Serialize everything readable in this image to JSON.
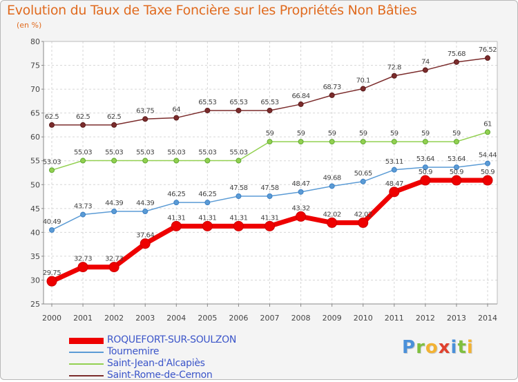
{
  "chart_data": {
    "type": "line",
    "title": "Evolution du Taux de Taxe Foncière sur les Propriétés Non Bâties",
    "ylabel": "(en %)",
    "xlabel": "",
    "ylim": [
      25,
      80
    ],
    "yticks": [
      "25",
      "30",
      "35",
      "40",
      "45",
      "50",
      "55",
      "60",
      "65",
      "70",
      "75",
      "80"
    ],
    "x": [
      "2000",
      "2001",
      "2002",
      "2003",
      "2004",
      "2005",
      "2006",
      "2007",
      "2008",
      "2009",
      "2010",
      "2011",
      "2012",
      "2013",
      "2014"
    ],
    "grid": true,
    "legend_position": "bottom-left",
    "series": [
      {
        "name": "ROQUEFORT-SUR-SOULZON",
        "color": "#ee0000",
        "values": [
          29.75,
          32.73,
          32.73,
          37.64,
          41.31,
          41.31,
          41.31,
          41.31,
          43.32,
          42.02,
          42.02,
          48.47,
          50.9,
          50.9,
          50.9
        ],
        "labels": [
          "29.75",
          "32.73",
          "32.73",
          "37.64",
          "41.31",
          "41.31",
          "41.31",
          "41.31",
          "43.32",
          "42.02",
          "42.02",
          "48.47",
          "50.9",
          "50.9",
          "50.9"
        ]
      },
      {
        "name": "Tournemire",
        "color": "#5b9bd5",
        "values": [
          40.49,
          43.73,
          44.39,
          44.39,
          46.25,
          46.25,
          47.58,
          47.58,
          48.47,
          49.68,
          50.65,
          53.11,
          53.64,
          53.64,
          54.44
        ],
        "labels": [
          "40.49",
          "43.73",
          "44.39",
          "44.39",
          "46.25",
          "46.25",
          "47.58",
          "47.58",
          "48.47",
          "49.68",
          "50.65",
          "53.11",
          "53.64",
          "53.64",
          "54.44"
        ]
      },
      {
        "name": "Saint-Jean-d'Alcapiès",
        "color": "#92d050",
        "values": [
          53.03,
          55.03,
          55.03,
          55.03,
          55.03,
          55.03,
          55.03,
          59,
          59,
          59,
          59,
          59,
          59,
          59,
          61
        ],
        "labels": [
          "53.03",
          "55.03",
          "55.03",
          "55.03",
          "55.03",
          "55.03",
          "55.03",
          "59",
          "59",
          "59",
          "59",
          "59",
          "59",
          "59",
          "61"
        ]
      },
      {
        "name": "Saint-Rome-de-Cernon",
        "color": "#7b2c2c",
        "values": [
          62.5,
          62.5,
          62.5,
          63.75,
          64,
          65.53,
          65.53,
          65.53,
          66.84,
          68.73,
          70.1,
          72.8,
          74,
          75.68,
          76.52
        ],
        "labels": [
          "62.5",
          "62.5",
          "62.5",
          "63.75",
          "64",
          "65.53",
          "65.53",
          "65.53",
          "66.84",
          "68.73",
          "70.1",
          "72.8",
          "74",
          "75.68",
          "76.52"
        ]
      }
    ]
  },
  "logo": {
    "letters": [
      "P",
      "r",
      "o",
      "x",
      "i",
      "t",
      "i"
    ],
    "colors": [
      "#4a90d9",
      "#7fbf3f",
      "#f2b233",
      "#e0412e",
      "#4a90d9",
      "#7fbf3f",
      "#f2b233"
    ]
  }
}
